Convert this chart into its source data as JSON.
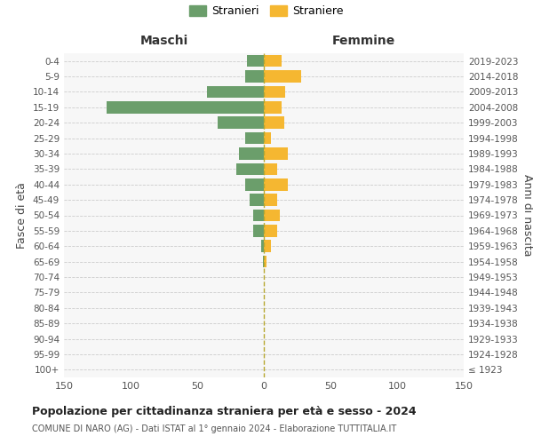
{
  "age_groups": [
    "100+",
    "95-99",
    "90-94",
    "85-89",
    "80-84",
    "75-79",
    "70-74",
    "65-69",
    "60-64",
    "55-59",
    "50-54",
    "45-49",
    "40-44",
    "35-39",
    "30-34",
    "25-29",
    "20-24",
    "15-19",
    "10-14",
    "5-9",
    "0-4"
  ],
  "birth_years": [
    "≤ 1923",
    "1924-1928",
    "1929-1933",
    "1934-1938",
    "1939-1943",
    "1944-1948",
    "1949-1953",
    "1954-1958",
    "1959-1963",
    "1964-1968",
    "1969-1973",
    "1974-1978",
    "1979-1983",
    "1984-1988",
    "1989-1993",
    "1994-1998",
    "1999-2003",
    "2004-2008",
    "2009-2013",
    "2014-2018",
    "2019-2023"
  ],
  "maschi": [
    0,
    0,
    0,
    0,
    0,
    0,
    0,
    1,
    2,
    8,
    8,
    11,
    14,
    21,
    19,
    14,
    35,
    118,
    43,
    14,
    13
  ],
  "femmine": [
    0,
    0,
    0,
    0,
    0,
    0,
    0,
    2,
    5,
    10,
    12,
    10,
    18,
    10,
    18,
    5,
    15,
    13,
    16,
    28,
    13
  ],
  "maschi_color": "#6b9e6b",
  "femmine_color": "#f5b731",
  "center_line_color": "#b8a830",
  "grid_color": "#cccccc",
  "bg_color": "#f7f7f7",
  "title": "Popolazione per cittadinanza straniera per età e sesso - 2024",
  "subtitle": "COMUNE DI NARO (AG) - Dati ISTAT al 1° gennaio 2024 - Elaborazione TUTTITALIA.IT",
  "left_label": "Maschi",
  "right_label": "Femmine",
  "ylabel_left": "Fasce di età",
  "ylabel_right": "Anni di nascita",
  "legend_maschi": "Stranieri",
  "legend_femmine": "Straniere",
  "xlim": 150,
  "xtick_vals": [
    -150,
    -100,
    -50,
    0,
    50,
    100,
    150
  ]
}
